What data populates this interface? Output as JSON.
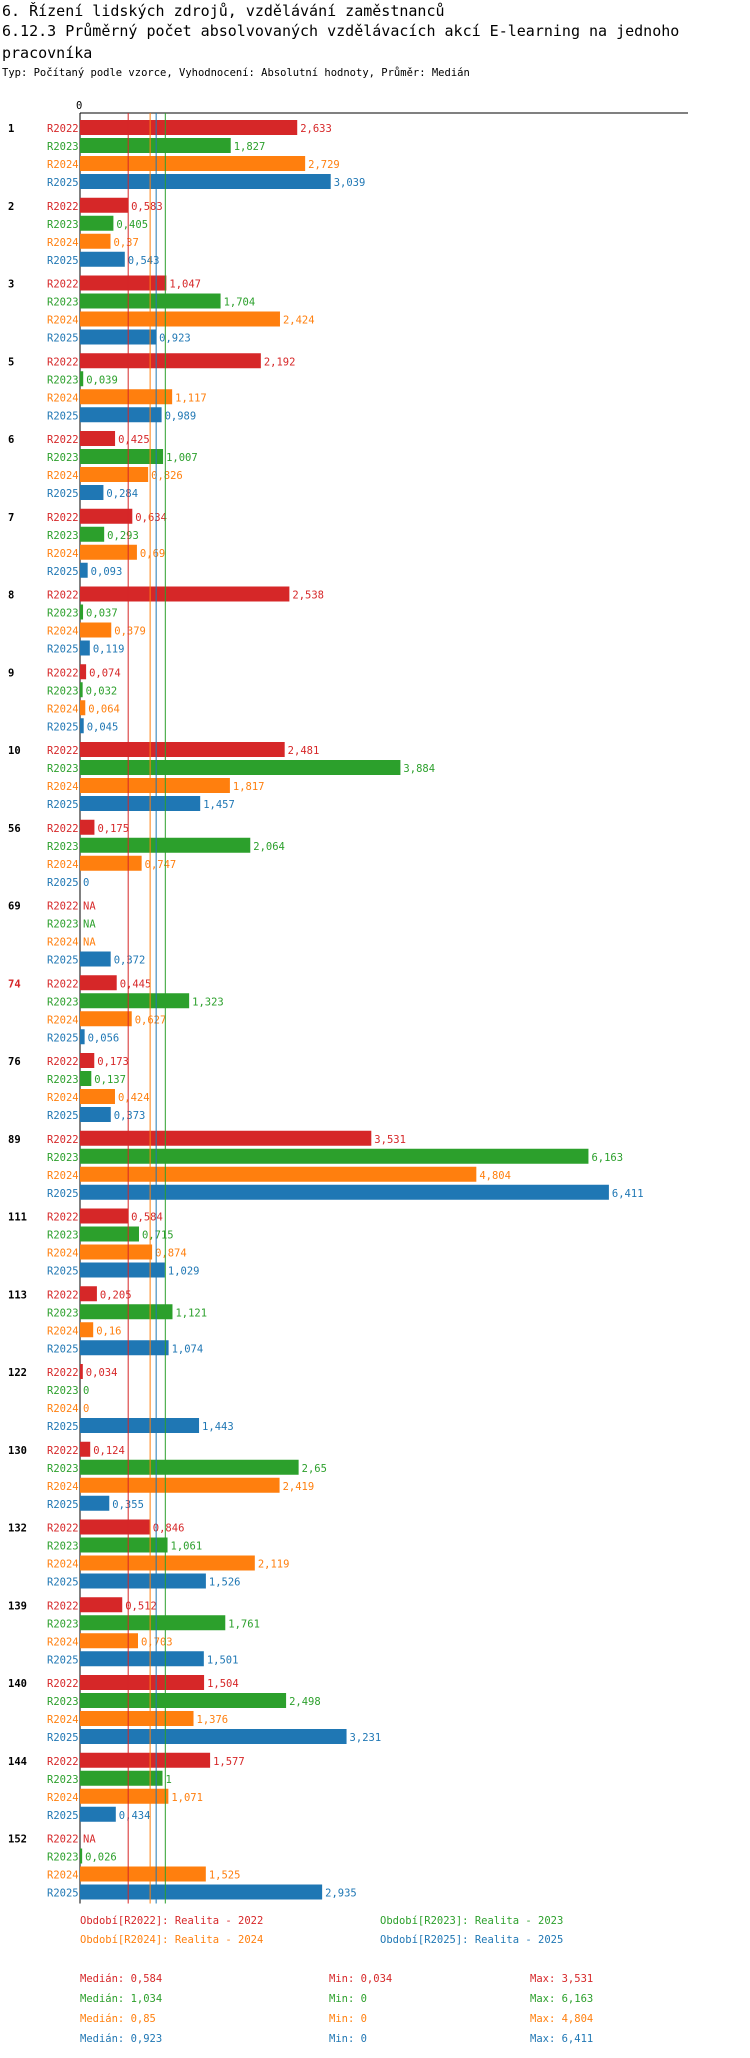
{
  "header": {
    "section_title": "6. Řízení lidských zdrojů, vzdělávání zaměstnanců",
    "chart_title": "6.12.3 Průměrný počet absolvovaných vzdělávacích akcí E-learning na jednoho pracovníka",
    "subtitle": "Typ: Počítaný podle vzorce, Vyhodnocení: Absolutní hodnoty, Průměr: Medián"
  },
  "colors": {
    "R2022": "#d62728",
    "R2023": "#2ca02c",
    "R2024": "#ff7f0e",
    "R2025": "#1f77b4",
    "highlight": "#d62728"
  },
  "legend": {
    "periods": [
      {
        "key": "R2022",
        "label": "Období[R2022]: Realita - 2022"
      },
      {
        "key": "R2023",
        "label": "Období[R2023]: Realita - 2023"
      },
      {
        "key": "R2024",
        "label": "Období[R2024]: Realita - 2024"
      },
      {
        "key": "R2025",
        "label": "Období[R2025]: Realita - 2025"
      }
    ],
    "stats": [
      {
        "key": "R2022",
        "median": "Medián: 0,584",
        "min": "Min: 0,034",
        "max": "Max: 3,531"
      },
      {
        "key": "R2023",
        "median": "Medián: 1,034",
        "min": "Min: 0",
        "max": "Max: 6,163"
      },
      {
        "key": "R2024",
        "median": "Medián: 0,85",
        "min": "Min: 0",
        "max": "Max: 4,804"
      },
      {
        "key": "R2025",
        "median": "Medián: 0,923",
        "min": "Min: 0",
        "max": "Max: 6,411"
      }
    ]
  },
  "chart_data": {
    "type": "bar",
    "orientation": "horizontal",
    "axis_zero_label": "0",
    "xlim": [
      0,
      6.8
    ],
    "series_keys": [
      "R2022",
      "R2023",
      "R2024",
      "R2025"
    ],
    "medians": {
      "R2022": 0.584,
      "R2023": 1.034,
      "R2024": 0.85,
      "R2025": 0.923
    },
    "highlight_category": "74",
    "groups": [
      {
        "label": "1",
        "values": [
          2.633,
          1.827,
          2.729,
          3.039
        ],
        "labels": [
          "2,633",
          "1,827",
          "2,729",
          "3,039"
        ]
      },
      {
        "label": "2",
        "values": [
          0.583,
          0.405,
          0.37,
          0.543
        ],
        "labels": [
          "0,583",
          "0,405",
          "0,37",
          "0,543"
        ]
      },
      {
        "label": "3",
        "values": [
          1.047,
          1.704,
          2.424,
          0.923
        ],
        "labels": [
          "1,047",
          "1,704",
          "2,424",
          "0,923"
        ]
      },
      {
        "label": "5",
        "values": [
          2.192,
          0.039,
          1.117,
          0.989
        ],
        "labels": [
          "2,192",
          "0,039",
          "1,117",
          "0,989"
        ]
      },
      {
        "label": "6",
        "values": [
          0.425,
          1.007,
          0.826,
          0.284
        ],
        "labels": [
          "0,425",
          "1,007",
          "0,826",
          "0,284"
        ]
      },
      {
        "label": "7",
        "values": [
          0.634,
          0.293,
          0.69,
          0.093
        ],
        "labels": [
          "0,634",
          "0,293",
          "0,69",
          "0,093"
        ]
      },
      {
        "label": "8",
        "values": [
          2.538,
          0.037,
          0.379,
          0.119
        ],
        "labels": [
          "2,538",
          "0,037",
          "0,379",
          "0,119"
        ]
      },
      {
        "label": "9",
        "values": [
          0.074,
          0.032,
          0.064,
          0.045
        ],
        "labels": [
          "0,074",
          "0,032",
          "0,064",
          "0,045"
        ]
      },
      {
        "label": "10",
        "values": [
          2.481,
          3.884,
          1.817,
          1.457
        ],
        "labels": [
          "2,481",
          "3,884",
          "1,817",
          "1,457"
        ]
      },
      {
        "label": "56",
        "values": [
          0.175,
          2.064,
          0.747,
          0
        ],
        "labels": [
          "0,175",
          "2,064",
          "0,747",
          "0"
        ]
      },
      {
        "label": "69",
        "values": [
          null,
          null,
          null,
          0.372
        ],
        "labels": [
          "NA",
          "NA",
          "NA",
          "0,372"
        ]
      },
      {
        "label": "74",
        "values": [
          0.445,
          1.323,
          0.627,
          0.056
        ],
        "labels": [
          "0,445",
          "1,323",
          "0,627",
          "0,056"
        ]
      },
      {
        "label": "76",
        "values": [
          0.173,
          0.137,
          0.424,
          0.373
        ],
        "labels": [
          "0,173",
          "0,137",
          "0,424",
          "0,373"
        ]
      },
      {
        "label": "89",
        "values": [
          3.531,
          6.163,
          4.804,
          6.411
        ],
        "labels": [
          "3,531",
          "6,163",
          "4,804",
          "6,411"
        ]
      },
      {
        "label": "111",
        "values": [
          0.584,
          0.715,
          0.874,
          1.029
        ],
        "labels": [
          "0,584",
          "0,715",
          "0,874",
          "1,029"
        ]
      },
      {
        "label": "113",
        "values": [
          0.205,
          1.121,
          0.16,
          1.074
        ],
        "labels": [
          "0,205",
          "1,121",
          "0,16",
          "1,074"
        ]
      },
      {
        "label": "122",
        "values": [
          0.034,
          0,
          0,
          1.443
        ],
        "labels": [
          "0,034",
          "0",
          "0",
          "1,443"
        ]
      },
      {
        "label": "130",
        "values": [
          0.124,
          2.65,
          2.419,
          0.355
        ],
        "labels": [
          "0,124",
          "2,65",
          "2,419",
          "0,355"
        ]
      },
      {
        "label": "132",
        "values": [
          0.846,
          1.061,
          2.119,
          1.526
        ],
        "labels": [
          "0,846",
          "1,061",
          "2,119",
          "1,526"
        ]
      },
      {
        "label": "139",
        "values": [
          0.512,
          1.761,
          0.703,
          1.501
        ],
        "labels": [
          "0,512",
          "1,761",
          "0,703",
          "1,501"
        ]
      },
      {
        "label": "140",
        "values": [
          1.504,
          2.498,
          1.376,
          3.231
        ],
        "labels": [
          "1,504",
          "2,498",
          "1,376",
          "3,231"
        ]
      },
      {
        "label": "144",
        "values": [
          1.577,
          1,
          1.071,
          0.434
        ],
        "labels": [
          "1,577",
          "1",
          "1,071",
          "0,434"
        ]
      },
      {
        "label": "152",
        "values": [
          null,
          0.026,
          1.525,
          2.935
        ],
        "labels": [
          "NA",
          "0,026",
          "1,525",
          "2,935"
        ]
      }
    ]
  }
}
